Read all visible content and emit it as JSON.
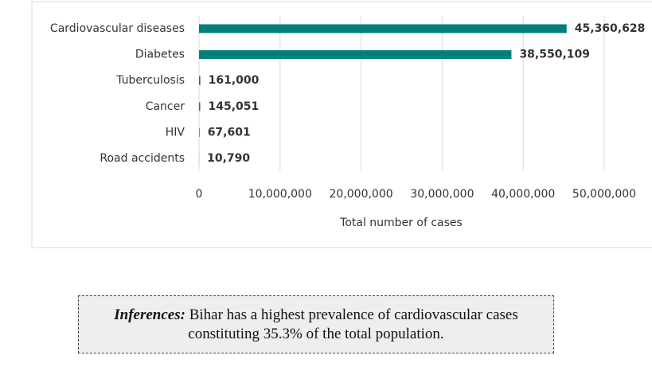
{
  "chart_data": {
    "type": "hbar",
    "xlabel": "Total number  of cases",
    "categories": [
      "Cardiovascular diseases",
      "Diabetes",
      "Tuberculosis",
      "Cancer",
      "HIV",
      "Road accidents"
    ],
    "values": [
      45360628,
      38550109,
      161000,
      145051,
      67601,
      10790
    ],
    "value_labels": [
      "45,360,628",
      "38,550,109",
      "161,000",
      "145,051",
      "67,601",
      "10,790"
    ],
    "color": "#00807a",
    "xlim": [
      0,
      50000000
    ],
    "xticks": [
      0,
      {
        "value": 10000000,
        "label": "10,000,000"
      },
      {
        "value": 20000000,
        "label": "20,000,000"
      },
      {
        "value": 30000000,
        "label": "30,000,000"
      },
      {
        "value": 40000000,
        "label": "40,000,000"
      },
      {
        "value": 50000000,
        "label": "50,000,000"
      }
    ],
    "grid": true
  },
  "note": {
    "label": "Inferences:",
    "lines": [
      "Bihar has a highest prevalence of cardiovascular cases",
      "constituting 35.3% of the total population."
    ]
  }
}
